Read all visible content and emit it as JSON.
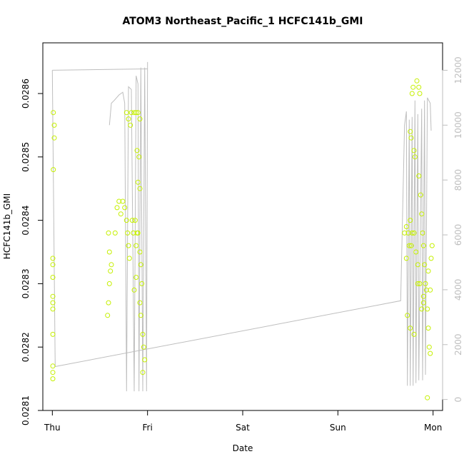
{
  "chart_data": {
    "type": "scatter",
    "title": "ATOM3 Northeast_Pacific_1 HCFC141b_GMI",
    "xlabel": "Date",
    "ylabel": "HCFC141b_GMI",
    "x_ticks": [
      "Thu",
      "Fri",
      "Sat",
      "Sun",
      "Mon"
    ],
    "x_tick_values": [
      0,
      1,
      2,
      3,
      4
    ],
    "xlim": [
      -0.1,
      4.1
    ],
    "ylim": [
      0.0281,
      0.02868
    ],
    "y_ticks": [
      "0.0281",
      "0.0282",
      "0.0283",
      "0.0284",
      "0.0285",
      "0.0286"
    ],
    "y_tick_values": [
      0.0281,
      0.0282,
      0.0283,
      0.0284,
      0.0285,
      0.0286
    ],
    "y2lim": [
      -400,
      13000
    ],
    "y2_ticks": [
      "0",
      "2000",
      "4000",
      "6000",
      "8000",
      "10000",
      "12000"
    ],
    "y2_tick_values": [
      0,
      2000,
      4000,
      6000,
      8000,
      10000,
      12000
    ],
    "grid": false,
    "series": [
      {
        "kind": "points",
        "color": "#c5f000",
        "points": [
          [
            0.01,
            0.02857
          ],
          [
            0.02,
            0.02855
          ],
          [
            0.02,
            0.02853
          ],
          [
            0.01,
            0.02848
          ],
          [
            0.005,
            0.02834
          ],
          [
            0.005,
            0.02833
          ],
          [
            0.005,
            0.02831
          ],
          [
            0.005,
            0.02828
          ],
          [
            0.005,
            0.02827
          ],
          [
            0.005,
            0.02826
          ],
          [
            0.005,
            0.02822
          ],
          [
            0.005,
            0.02817
          ],
          [
            0.005,
            0.02816
          ],
          [
            0.005,
            0.02815
          ],
          [
            0.59,
            0.02838
          ],
          [
            0.6,
            0.02835
          ],
          [
            0.61,
            0.02832
          ],
          [
            0.6,
            0.0283
          ],
          [
            0.59,
            0.02827
          ],
          [
            0.58,
            0.02825
          ],
          [
            0.62,
            0.02833
          ],
          [
            0.66,
            0.02838
          ],
          [
            0.68,
            0.02842
          ],
          [
            0.7,
            0.02843
          ],
          [
            0.72,
            0.02841
          ],
          [
            0.74,
            0.02843
          ],
          [
            0.76,
            0.02842
          ],
          [
            0.78,
            0.0284
          ],
          [
            0.79,
            0.02838
          ],
          [
            0.8,
            0.02836
          ],
          [
            0.81,
            0.02834
          ],
          [
            0.78,
            0.02857
          ],
          [
            0.8,
            0.02856
          ],
          [
            0.82,
            0.02855
          ],
          [
            0.83,
            0.02857
          ],
          [
            0.86,
            0.02857
          ],
          [
            0.88,
            0.02857
          ],
          [
            0.9,
            0.02857
          ],
          [
            0.92,
            0.02856
          ],
          [
            0.89,
            0.02851
          ],
          [
            0.91,
            0.0285
          ],
          [
            0.9,
            0.02846
          ],
          [
            0.92,
            0.02845
          ],
          [
            0.88,
            0.02836
          ],
          [
            0.89,
            0.02838
          ],
          [
            0.9,
            0.02838
          ],
          [
            0.92,
            0.02835
          ],
          [
            0.93,
            0.02833
          ],
          [
            0.94,
            0.0283
          ],
          [
            0.92,
            0.02827
          ],
          [
            0.93,
            0.02825
          ],
          [
            0.95,
            0.02822
          ],
          [
            0.96,
            0.0282
          ],
          [
            0.97,
            0.02818
          ],
          [
            0.95,
            0.02816
          ],
          [
            0.87,
            0.0284
          ],
          [
            0.85,
            0.02838
          ],
          [
            0.84,
            0.0284
          ],
          [
            0.88,
            0.02831
          ],
          [
            0.86,
            0.02829
          ],
          [
            3.72,
            0.02834
          ],
          [
            3.7,
            0.02838
          ],
          [
            3.72,
            0.02839
          ],
          [
            3.74,
            0.02838
          ],
          [
            3.75,
            0.02836
          ],
          [
            3.77,
            0.02836
          ],
          [
            3.76,
            0.0284
          ],
          [
            3.78,
            0.02838
          ],
          [
            3.8,
            0.02838
          ],
          [
            3.82,
            0.02835
          ],
          [
            3.84,
            0.02833
          ],
          [
            3.86,
            0.0283
          ],
          [
            3.88,
            0.02826
          ],
          [
            3.9,
            0.02828
          ],
          [
            3.92,
            0.0283
          ],
          [
            3.78,
            0.0286
          ],
          [
            3.79,
            0.02861
          ],
          [
            3.83,
            0.02862
          ],
          [
            3.85,
            0.02861
          ],
          [
            3.86,
            0.0286
          ],
          [
            3.8,
            0.02851
          ],
          [
            3.81,
            0.0285
          ],
          [
            3.88,
            0.02841
          ],
          [
            3.89,
            0.02838
          ],
          [
            3.9,
            0.02836
          ],
          [
            3.91,
            0.02833
          ],
          [
            3.93,
            0.02829
          ],
          [
            3.94,
            0.02826
          ],
          [
            3.95,
            0.02823
          ],
          [
            3.96,
            0.0282
          ],
          [
            3.97,
            0.02819
          ],
          [
            3.76,
            0.02854
          ],
          [
            3.77,
            0.02853
          ],
          [
            3.85,
            0.02847
          ],
          [
            3.87,
            0.02844
          ],
          [
            3.95,
            0.02832
          ],
          [
            3.98,
            0.02834
          ],
          [
            3.99,
            0.02836
          ],
          [
            3.73,
            0.02825
          ],
          [
            3.76,
            0.02823
          ],
          [
            3.8,
            0.02822
          ],
          [
            3.94,
            0.02812
          ],
          [
            3.97,
            0.02829
          ],
          [
            3.84,
            0.0283
          ],
          [
            3.9,
            0.02827
          ]
        ]
      },
      {
        "kind": "line",
        "color": "#bebebe",
        "axis": "right",
        "points": [
          [
            0.0,
            12000
          ],
          [
            0.03,
            1200
          ],
          [
            3.66,
            3600
          ],
          [
            3.7,
            10000
          ],
          [
            3.72,
            10500
          ],
          [
            3.73,
            500
          ],
          [
            3.75,
            10200
          ],
          [
            3.76,
            500
          ],
          [
            3.78,
            10300
          ],
          [
            3.79,
            500
          ],
          [
            3.81,
            10900
          ],
          [
            3.82,
            600
          ],
          [
            3.84,
            10400
          ],
          [
            3.85,
            700
          ],
          [
            3.88,
            10600
          ],
          [
            3.89,
            700
          ],
          [
            3.91,
            10900
          ],
          [
            3.92,
            900
          ],
          [
            3.94,
            11000
          ],
          [
            3.97,
            10800
          ],
          [
            3.98,
            9800
          ]
        ]
      },
      {
        "kind": "line",
        "color": "#bebebe",
        "axis": "right",
        "points": [
          [
            0.0,
            12000
          ],
          [
            1.0,
            12050
          ]
        ]
      },
      {
        "kind": "line",
        "color": "#bebebe",
        "axis": "right",
        "points": [
          [
            0.6,
            10000
          ],
          [
            0.62,
            10800
          ],
          [
            0.65,
            10900
          ],
          [
            0.7,
            11100
          ],
          [
            0.74,
            11200
          ],
          [
            0.76,
            10800
          ],
          [
            0.78,
            300
          ],
          [
            0.8,
            11400
          ],
          [
            0.83,
            11300
          ],
          [
            0.86,
            300
          ],
          [
            0.88,
            11800
          ],
          [
            0.9,
            11500
          ],
          [
            0.91,
            300
          ],
          [
            0.93,
            12100
          ],
          [
            0.95,
            300
          ],
          [
            0.97,
            12100
          ],
          [
            0.99,
            300
          ],
          [
            1.0,
            12300
          ]
        ]
      }
    ]
  }
}
